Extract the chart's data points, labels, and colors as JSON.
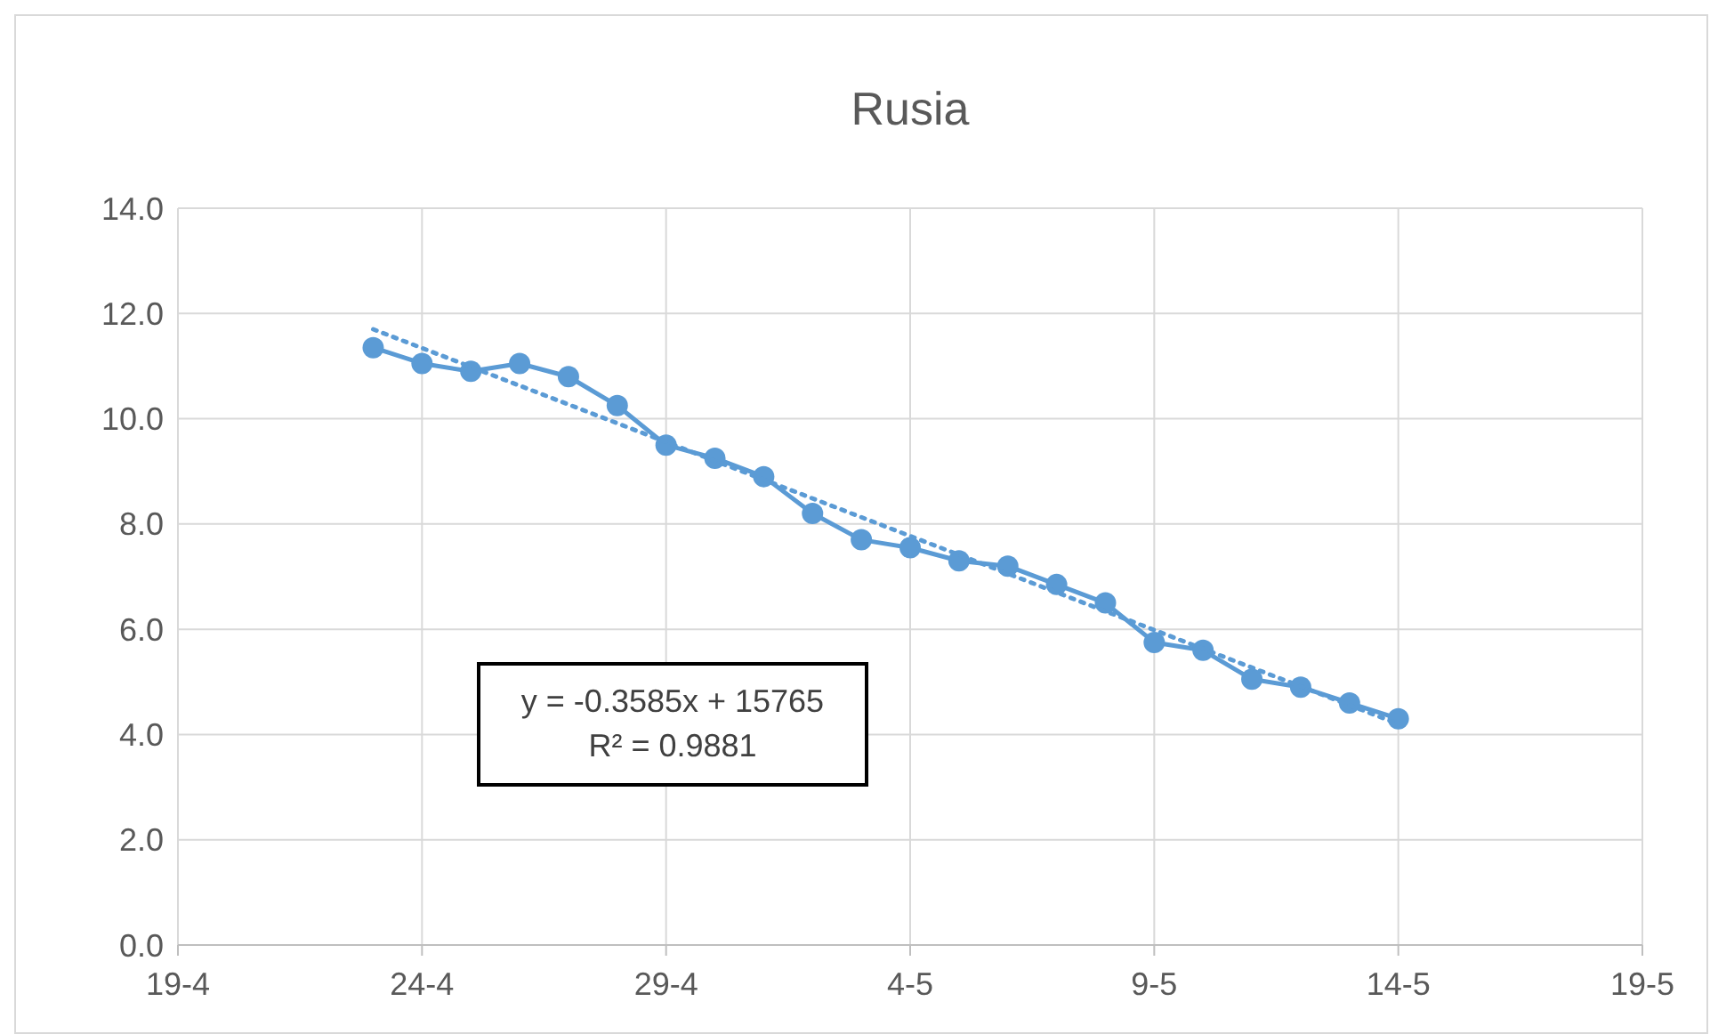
{
  "chart_data": {
    "type": "line",
    "title": "Rusia",
    "x": [
      "--04-23",
      "--04-24",
      "--04-25",
      "--04-26",
      "--04-27",
      "--04-28",
      "--04-29",
      "--04-30",
      "--05-01",
      "--05-02",
      "--05-03",
      "--05-04",
      "--05-05",
      "--05-06",
      "--05-07",
      "--05-08",
      "--05-09",
      "--05-10",
      "--05-11",
      "--05-12",
      "--05-13",
      "--05-14"
    ],
    "series": [
      {
        "color": "#5b9bd5",
        "marker": "circle",
        "line_style": "solid",
        "values": [
          11.35,
          11.05,
          10.9,
          11.05,
          10.8,
          10.25,
          9.5,
          9.25,
          8.9,
          8.2,
          7.7,
          7.55,
          7.3,
          7.2,
          6.85,
          6.5,
          5.75,
          5.6,
          5.05,
          4.9,
          4.6,
          4.3
        ]
      },
      {
        "type": "line",
        "color": "#5b9bd5",
        "marker": "none",
        "line_style": "dotted",
        "x": [
          "--04-23",
          "--05-14"
        ],
        "values": [
          11.7,
          4.2
        ]
      }
    ],
    "xlim": [
      "--04-19",
      "--05-19"
    ],
    "xticks": [
      {
        "value": "--04-19",
        "label": "19-4"
      },
      {
        "value": "--04-24",
        "label": "24-4"
      },
      {
        "value": "--04-29",
        "label": "29-4"
      },
      {
        "value": "--05-04",
        "label": "4-5"
      },
      {
        "value": "--05-09",
        "label": "9-5"
      },
      {
        "value": "--05-14",
        "label": "14-5"
      },
      {
        "value": "--05-19",
        "label": "19-5"
      }
    ],
    "ylim": [
      0,
      14
    ],
    "yticks": [
      {
        "value": 0,
        "label": "0.0"
      },
      {
        "value": 2,
        "label": "2.0"
      },
      {
        "value": 4,
        "label": "4.0"
      },
      {
        "value": 6,
        "label": "6.0"
      },
      {
        "value": 8,
        "label": "8.0"
      },
      {
        "value": 10,
        "label": "10.0"
      },
      {
        "value": 12,
        "label": "12.0"
      },
      {
        "value": 14,
        "label": "14.0"
      }
    ],
    "grid": true,
    "annotations": [
      "y = -0.3585x + 15765\nR² = 0.9881"
    ]
  }
}
